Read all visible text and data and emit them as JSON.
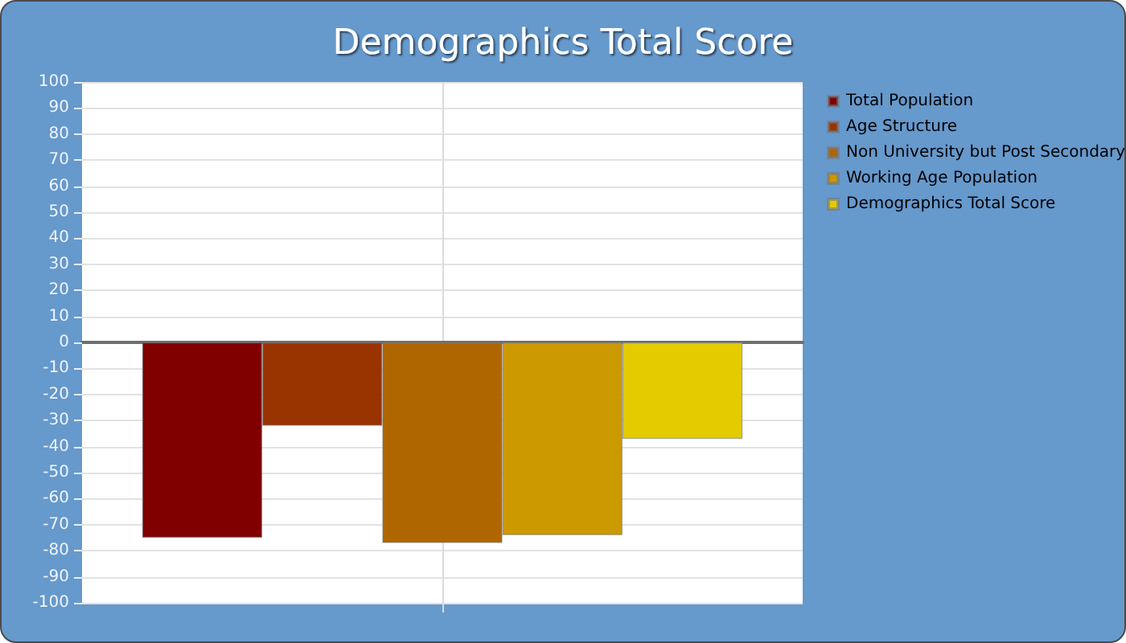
{
  "chart_data": {
    "type": "bar",
    "title": "Demographics Total Score",
    "categories": [
      null
    ],
    "series": [
      {
        "name": "Total Population",
        "color": "#800000",
        "values": [
          -75
        ]
      },
      {
        "name": "Age Structure",
        "color": "#993300",
        "values": [
          -32
        ]
      },
      {
        "name": "Non University but Post Secondary",
        "color": "#b06600",
        "values": [
          -77
        ]
      },
      {
        "name": "Working Age Population",
        "color": "#cc9900",
        "values": [
          -74
        ]
      },
      {
        "name": "Demographics Total Score",
        "color": "#e3cb00",
        "values": [
          -37
        ]
      }
    ],
    "ylim": [
      -100,
      100
    ],
    "yticks": [
      -100,
      -90,
      -80,
      -70,
      -60,
      -50,
      -40,
      -30,
      -20,
      -10,
      0,
      10,
      20,
      30,
      40,
      50,
      60,
      70,
      80,
      90,
      100
    ],
    "grid": true,
    "legend": "top right"
  }
}
